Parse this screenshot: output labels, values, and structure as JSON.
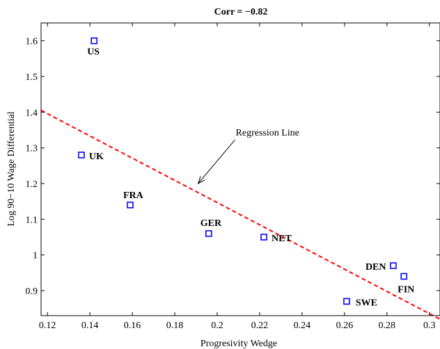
{
  "chart_data": {
    "type": "scatter",
    "title": "Corr = −0.82",
    "xlabel": "Progresivity Wedge",
    "ylabel": "Log 90−10 Wage Differential",
    "xlim": [
      0.117,
      0.305
    ],
    "ylim": [
      0.83,
      1.65
    ],
    "xticks": [
      0.12,
      0.14,
      0.16,
      0.18,
      0.2,
      0.22,
      0.24,
      0.26,
      0.28,
      0.3
    ],
    "xtick_labels": [
      "0.12",
      "0.14",
      "0.16",
      "0.18",
      "0.2",
      "0.22",
      "0.24",
      "0.26",
      "0.28",
      "0.3"
    ],
    "yticks": [
      0.9,
      1.0,
      1.1,
      1.2,
      1.3,
      1.4,
      1.5,
      1.6
    ],
    "ytick_labels": [
      "0.9",
      "1",
      "1.1",
      "1.2",
      "1.3",
      "1.4",
      "1.5",
      "1.6"
    ],
    "grid": false,
    "points": [
      {
        "label": "US",
        "x": 0.142,
        "y": 1.6
      },
      {
        "label": "UK",
        "x": 0.136,
        "y": 1.28
      },
      {
        "label": "FRA",
        "x": 0.159,
        "y": 1.14
      },
      {
        "label": "GER",
        "x": 0.196,
        "y": 1.06
      },
      {
        "label": "NET",
        "x": 0.222,
        "y": 1.05
      },
      {
        "label": "SWE",
        "x": 0.261,
        "y": 0.87
      },
      {
        "label": "DEN",
        "x": 0.283,
        "y": 0.97
      },
      {
        "label": "FIN",
        "x": 0.288,
        "y": 0.94
      }
    ],
    "regression_line": {
      "x": [
        0.117,
        0.305
      ],
      "y": [
        1.405,
        0.82
      ]
    },
    "annotation": {
      "text": "Regression Line",
      "points_to": {
        "x": 0.191,
        "y": 1.2
      }
    },
    "colors": {
      "marker": "#0000ff",
      "regression": "#ff0000",
      "axes": "#000000"
    }
  }
}
